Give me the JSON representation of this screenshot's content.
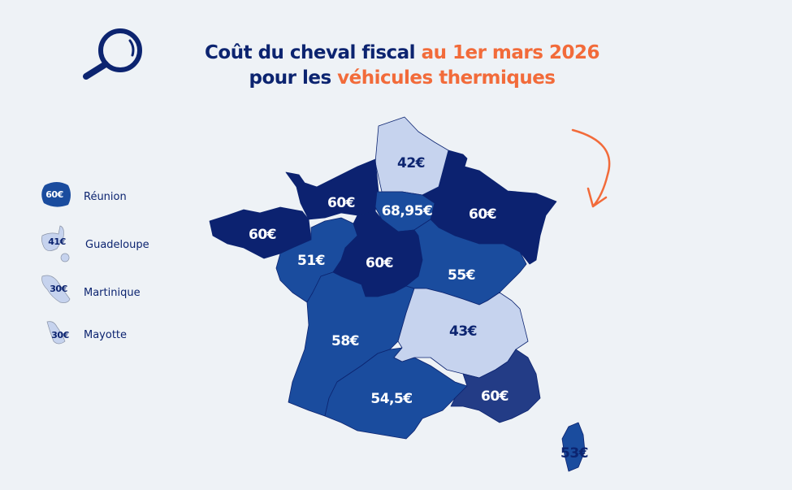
{
  "title": {
    "line1_prefix": "Coût du cheval fiscal ",
    "line1_highlight": "au 1er mars 2026",
    "line2_prefix": "pour les ",
    "line2_highlight": "véhicules thermiques"
  },
  "colors": {
    "dark": "#0c2270",
    "medium": "#1a4c9e",
    "light": "#c6d3ee",
    "paca": "#233c86",
    "accent": "#f26b3a",
    "text": "#0c2470",
    "background": "#eef2f6"
  },
  "icons": {
    "header": "magnifier-icon",
    "annotation": "curved-arrow-icon"
  },
  "regions": [
    {
      "name": "Hauts-de-France",
      "price": "42€",
      "tier": "light"
    },
    {
      "name": "Normandie",
      "price": "60€",
      "tier": "dark"
    },
    {
      "name": "Île-de-France",
      "price": "68,95€",
      "tier": "medium"
    },
    {
      "name": "Grand Est",
      "price": "60€",
      "tier": "dark"
    },
    {
      "name": "Bretagne",
      "price": "60€",
      "tier": "dark"
    },
    {
      "name": "Pays de la Loire",
      "price": "51€",
      "tier": "medium"
    },
    {
      "name": "Centre-Val de Loire",
      "price": "60€",
      "tier": "dark"
    },
    {
      "name": "Bourgogne-Franche-Comté",
      "price": "55€",
      "tier": "medium"
    },
    {
      "name": "Auvergne-Rhône-Alpes",
      "price": "43€",
      "tier": "light"
    },
    {
      "name": "Nouvelle-Aquitaine",
      "price": "58€",
      "tier": "medium"
    },
    {
      "name": "Occitanie",
      "price": "54,5€",
      "tier": "medium"
    },
    {
      "name": "Provence-Alpes-Côte d'Azur",
      "price": "60€",
      "tier": "paca"
    },
    {
      "name": "Corse",
      "price": "53€",
      "tier": "medium"
    }
  ],
  "overseas": [
    {
      "name": "Réunion",
      "price": "60€",
      "tier": "medium"
    },
    {
      "name": "Guadeloupe",
      "price": "41€",
      "tier": "light"
    },
    {
      "name": "Martinique",
      "price": "30€",
      "tier": "light"
    },
    {
      "name": "Mayotte",
      "price": "30€",
      "tier": "light"
    }
  ]
}
